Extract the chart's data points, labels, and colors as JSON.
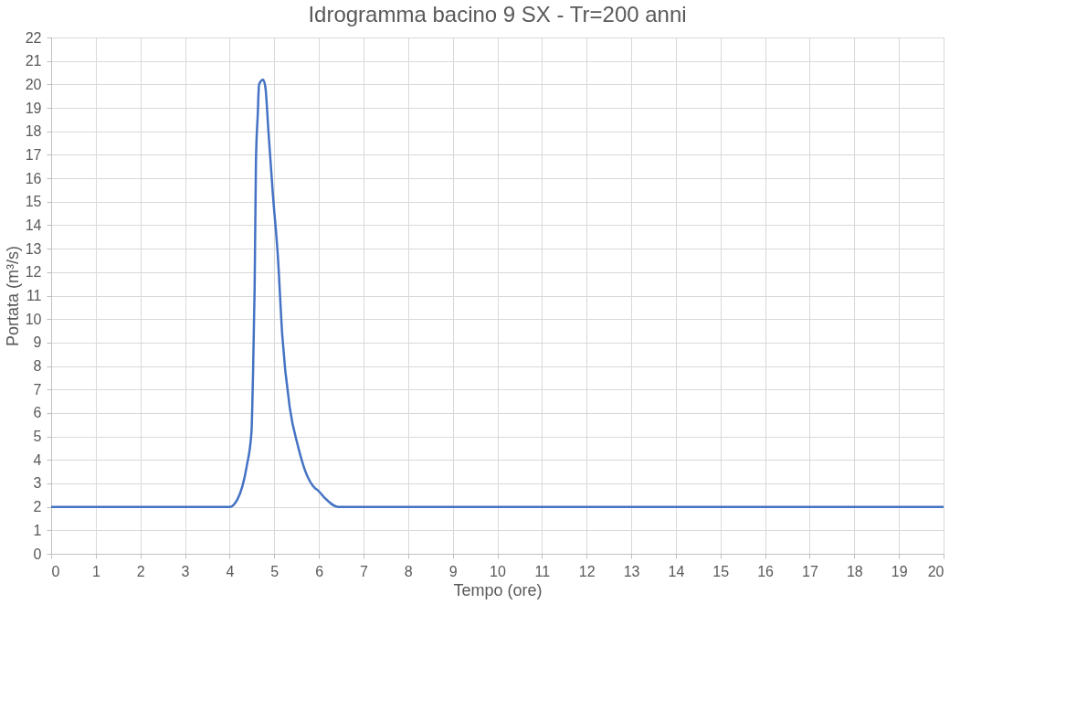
{
  "chart_data": {
    "type": "line",
    "title": "Idrogramma bacino 9 SX - Tr=200 anni",
    "xlabel": "Tempo (ore)",
    "ylabel": "Portata (m³/s)",
    "x": [
      0,
      4.0,
      4.17,
      4.38,
      4.49,
      4.52,
      4.56,
      4.59,
      4.63,
      4.66,
      4.75,
      4.8,
      4.87,
      4.97,
      5.08,
      5.18,
      5.35,
      5.53,
      5.7,
      5.91,
      5.98,
      6.12,
      6.43,
      20
    ],
    "series": [
      {
        "color": "#4472c4",
        "values": [
          2,
          2,
          2.3,
          3.7,
          5.2,
          7.3,
          11.3,
          16.7,
          18.7,
          20.0,
          20.2,
          19.9,
          18.0,
          15.3,
          12.7,
          9.3,
          6.2,
          4.6,
          3.5,
          2.8,
          2.7,
          2.4,
          2.0,
          2
        ]
      }
    ],
    "xlim": [
      0,
      20
    ],
    "xticks": [
      0,
      1,
      2,
      3,
      4,
      5,
      6,
      7,
      8,
      9,
      10,
      11,
      12,
      13,
      14,
      15,
      16,
      17,
      18,
      19,
      20
    ],
    "ylim": [
      0,
      22
    ],
    "yticks": [
      0,
      1,
      2,
      3,
      4,
      5,
      6,
      7,
      8,
      9,
      10,
      11,
      12,
      13,
      14,
      15,
      16,
      17,
      18,
      19,
      20,
      21,
      22
    ],
    "grid": true,
    "marker": "none",
    "line_style": "solid"
  }
}
